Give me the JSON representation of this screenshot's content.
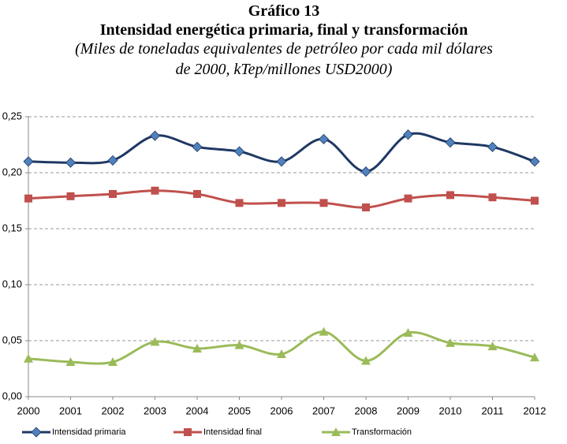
{
  "chart_data": {
    "type": "line",
    "title": "Gráfico 13",
    "subtitle": "Intensidad energética primaria, final y transformación",
    "notes": [
      "(Miles de toneladas equivalentes de petróleo por cada mil dólares",
      "de 2000, kTep/millones USD2000)"
    ],
    "x": [
      2000,
      2001,
      2002,
      2003,
      2004,
      2005,
      2006,
      2007,
      2008,
      2009,
      2010,
      2011,
      2012
    ],
    "xlim": [
      2000,
      2012
    ],
    "xticks": [
      2000,
      2001,
      2002,
      2003,
      2004,
      2005,
      2006,
      2007,
      2008,
      2009,
      2010,
      2011,
      2012
    ],
    "ylim": [
      0,
      0.25
    ],
    "yticks": [
      {
        "value": 0,
        "label": "0,00"
      },
      {
        "value": 0.05,
        "label": "0,05"
      },
      {
        "value": 0.1,
        "label": "0,10"
      },
      {
        "value": 0.15,
        "label": "0,15"
      },
      {
        "value": 0.2,
        "label": "0,20"
      },
      {
        "value": 0.25,
        "label": "0,25"
      }
    ],
    "grid": true,
    "smooth": true,
    "legend": "bottom",
    "series": [
      {
        "name": "Intensidad primaria",
        "color": "#1f3864",
        "marker": "diamond",
        "marker_color": "#4f81bd",
        "values": [
          0.21,
          0.209,
          0.211,
          0.233,
          0.223,
          0.219,
          0.21,
          0.23,
          0.201,
          0.234,
          0.227,
          0.223,
          0.21
        ]
      },
      {
        "name": "Intensidad final",
        "color": "#c0504d",
        "marker": "square",
        "marker_color": "#c0504d",
        "values": [
          0.177,
          0.179,
          0.181,
          0.184,
          0.181,
          0.173,
          0.173,
          0.173,
          0.169,
          0.177,
          0.18,
          0.178,
          0.175
        ]
      },
      {
        "name": "Transformación",
        "color": "#9bbb59",
        "marker": "triangle",
        "marker_color": "#9bbb59",
        "values": [
          0.034,
          0.031,
          0.031,
          0.049,
          0.043,
          0.046,
          0.038,
          0.058,
          0.032,
          0.057,
          0.048,
          0.045,
          0.035
        ]
      }
    ]
  }
}
